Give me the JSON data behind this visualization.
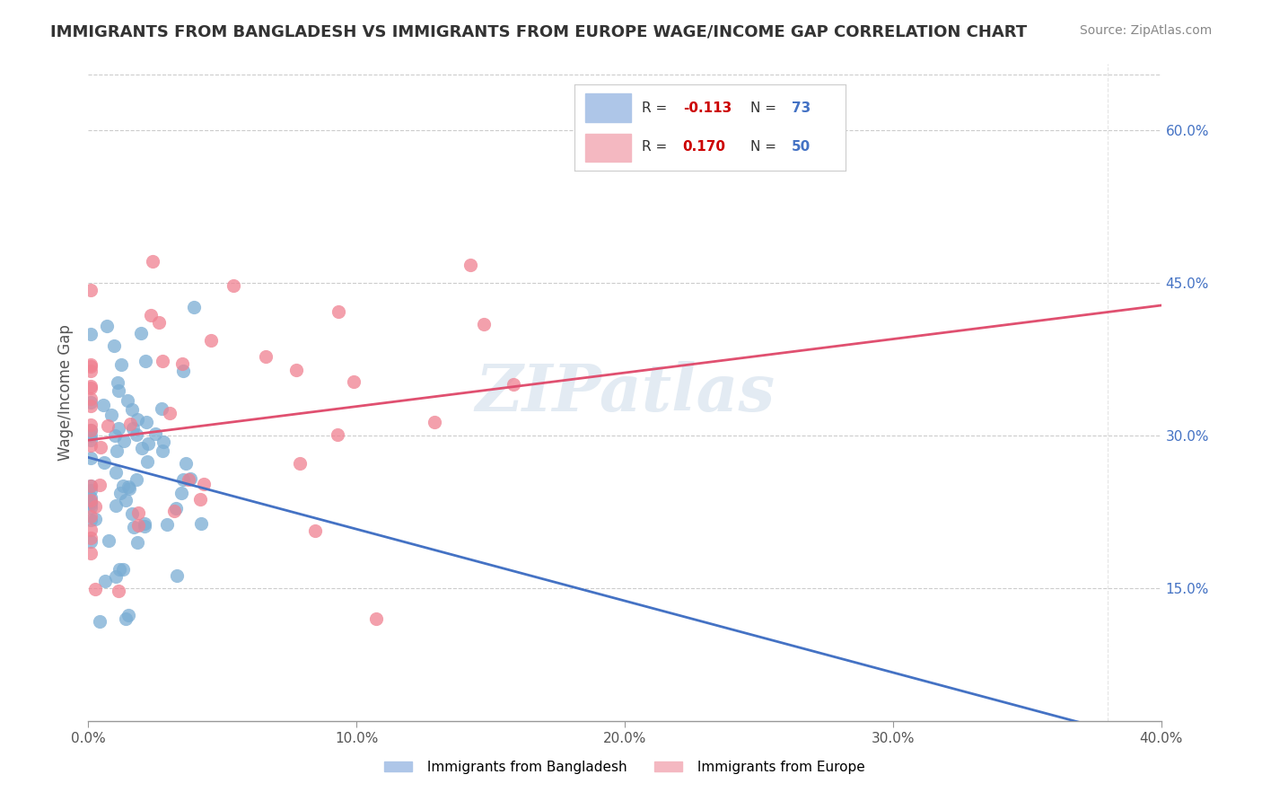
{
  "title": "IMMIGRANTS FROM BANGLADESH VS IMMIGRANTS FROM EUROPE WAGE/INCOME GAP CORRELATION CHART",
  "source": "Source: ZipAtlas.com",
  "ylabel": "Wage/Income Gap",
  "ytick_values": [
    0.15,
    0.3,
    0.45,
    0.6
  ],
  "ytick_labels": [
    "15.0%",
    "30.0%",
    "45.0%",
    "60.0%"
  ],
  "xlim": [
    0.0,
    0.4
  ],
  "ylim": [
    0.02,
    0.665
  ],
  "watermark": "ZIPatlas",
  "blue_color": "#7aadd4",
  "pink_color": "#f08090",
  "blue_line_color": "#4472c4",
  "pink_line_color": "#e05070",
  "blue_R": -0.113,
  "pink_R": 0.17,
  "blue_N": 73,
  "pink_N": 50,
  "legend_box_blue": "#aec6e8",
  "legend_box_pink": "#f4b8c1",
  "legend_r_color": "#cc0000",
  "legend_n_color": "#4472c4"
}
